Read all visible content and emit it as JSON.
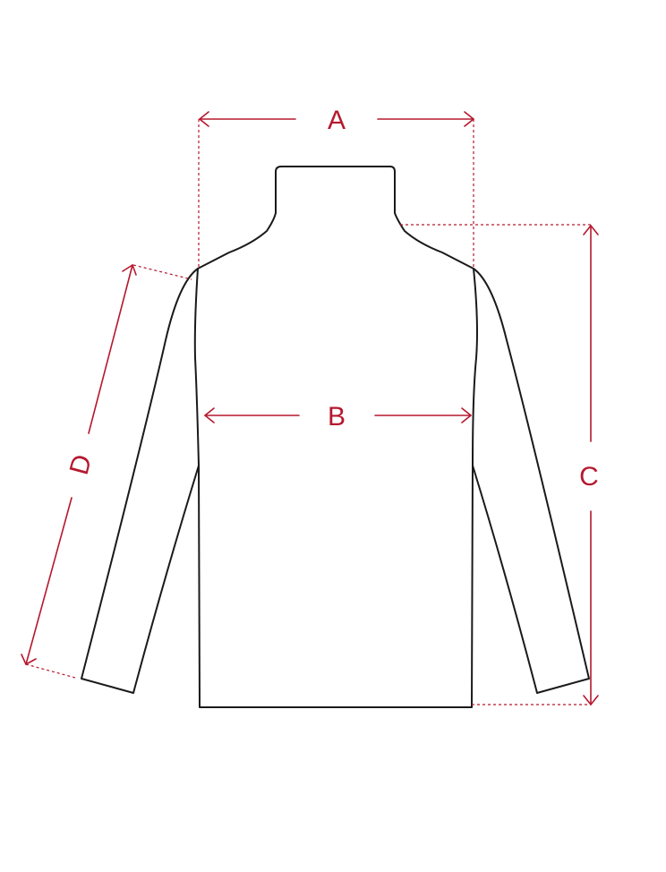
{
  "colors": {
    "measure": "#b5182e",
    "outline": "#1a1a1a",
    "background": "#ffffff"
  },
  "measurements": {
    "A": "A",
    "B": "B",
    "C": "C",
    "D": "D"
  }
}
